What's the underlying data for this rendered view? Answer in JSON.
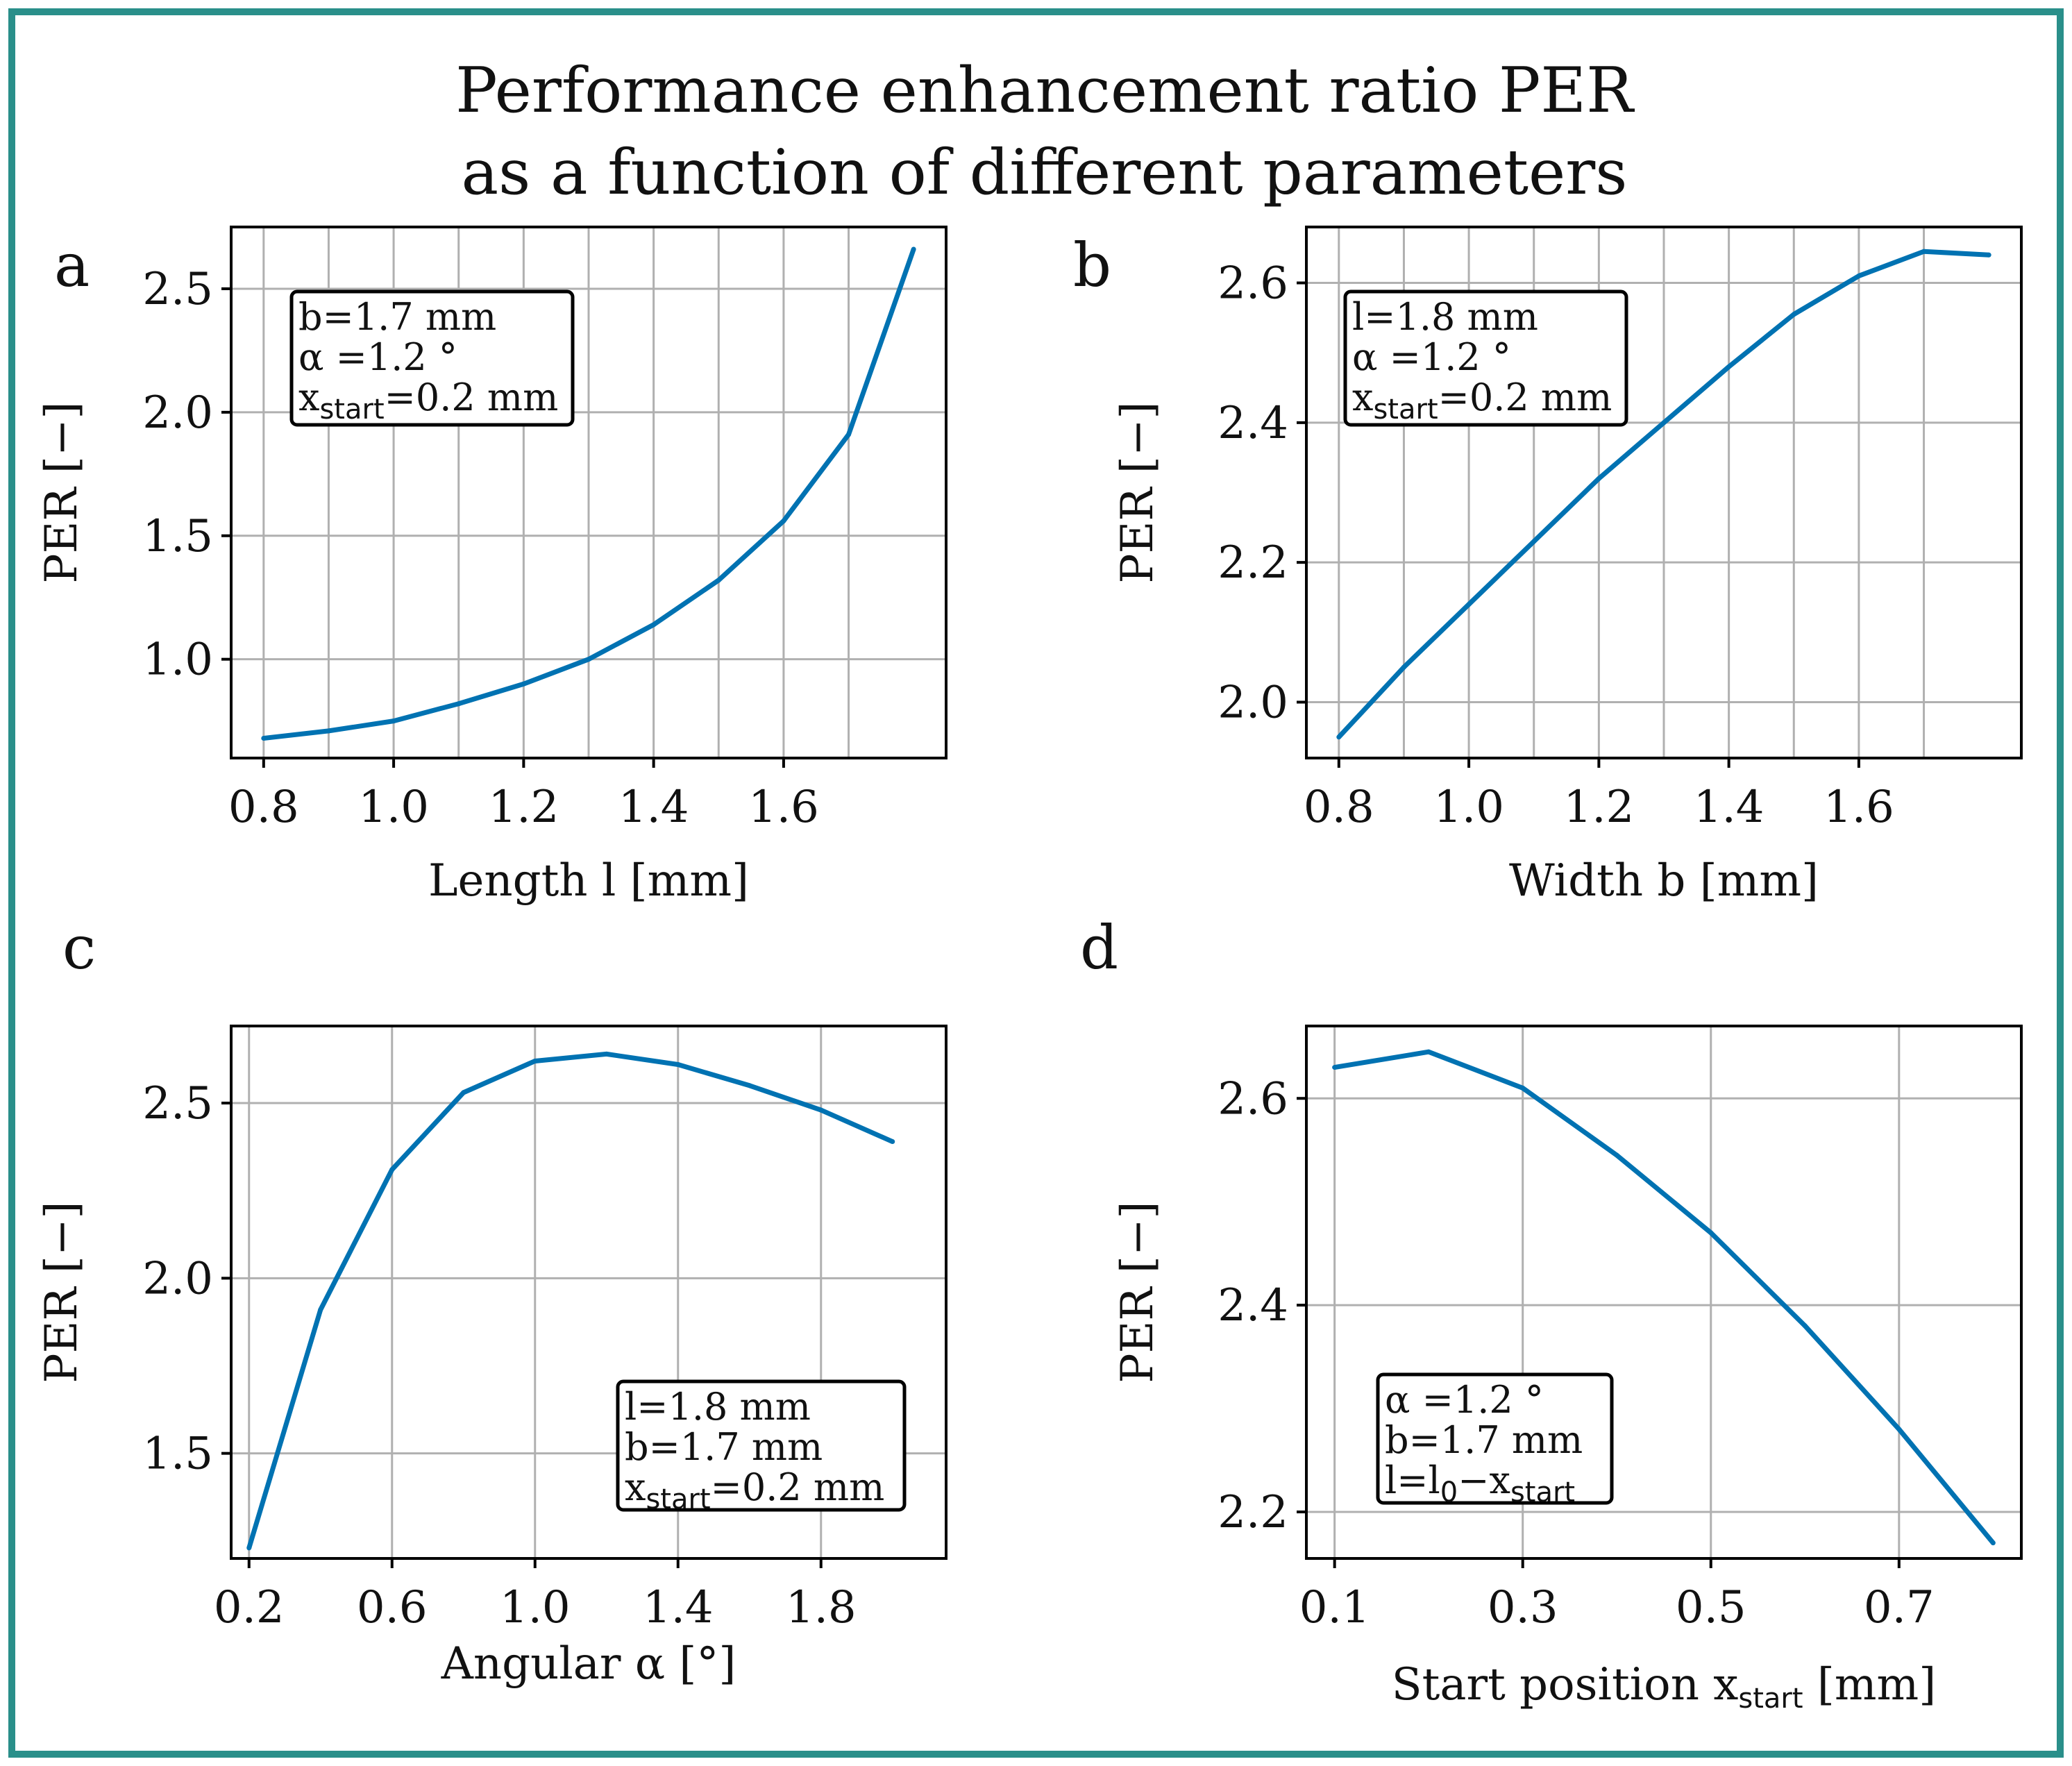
{
  "title": {
    "line1": "Performance enhancement ratio PER",
    "line2": "as a function of different parameters"
  },
  "colors": {
    "line": "#0072b2",
    "grid": "#b0b0b0",
    "frame": "#2a8f8a",
    "axes": "#000000"
  },
  "chart_data": [
    {
      "id": "a",
      "panel_letter": "a",
      "type": "line",
      "xlabel": "Length l [mm]",
      "ylabel": "PER [−]",
      "xlim": [
        0.75,
        1.85
      ],
      "ylim": [
        0.6,
        2.75
      ],
      "xticks": [
        0.8,
        1.0,
        1.2,
        1.4,
        1.6
      ],
      "xtick_labels": [
        "0.8",
        "1.0",
        "1.2",
        "1.4",
        "1.6"
      ],
      "xgrid": [
        0.8,
        0.9,
        1.0,
        1.1,
        1.2,
        1.3,
        1.4,
        1.5,
        1.6,
        1.7
      ],
      "yticks": [
        1.0,
        1.5,
        2.0,
        2.5
      ],
      "ytick_labels": [
        "1.0",
        "1.5",
        "2.0",
        "2.5"
      ],
      "x": [
        0.8,
        0.9,
        1.0,
        1.1,
        1.2,
        1.3,
        1.4,
        1.5,
        1.6,
        1.7,
        1.8
      ],
      "y": [
        0.68,
        0.71,
        0.75,
        0.82,
        0.9,
        1.0,
        1.14,
        1.32,
        1.56,
        1.91,
        2.66
      ],
      "annotation": {
        "lines": [
          {
            "main": "b=1.7 mm"
          },
          {
            "main": " α =1.2 °"
          },
          {
            "main": "x",
            "sub": "start",
            "tail": "=0.2 mm"
          }
        ]
      }
    },
    {
      "id": "b",
      "panel_letter": "b",
      "type": "line",
      "xlabel": "Width b [mm]",
      "ylabel": "PER [−]",
      "xlim": [
        0.75,
        1.85
      ],
      "ylim": [
        1.92,
        2.68
      ],
      "xticks": [
        0.8,
        1.0,
        1.2,
        1.4,
        1.6
      ],
      "xtick_labels": [
        "0.8",
        "1.0",
        "1.2",
        "1.4",
        "1.6"
      ],
      "xgrid": [
        0.8,
        0.9,
        1.0,
        1.1,
        1.2,
        1.3,
        1.4,
        1.5,
        1.6,
        1.7
      ],
      "yticks": [
        2.0,
        2.2,
        2.4,
        2.6
      ],
      "ytick_labels": [
        "2.0",
        "2.2",
        "2.4",
        "2.6"
      ],
      "x": [
        0.8,
        0.9,
        1.0,
        1.1,
        1.2,
        1.3,
        1.4,
        1.5,
        1.6,
        1.7,
        1.8
      ],
      "y": [
        1.95,
        2.05,
        2.14,
        2.23,
        2.32,
        2.4,
        2.48,
        2.555,
        2.61,
        2.645,
        2.64
      ],
      "annotation": {
        "lines": [
          {
            "main": "l=1.8 mm"
          },
          {
            "main": " α =1.2 °"
          },
          {
            "main": "x",
            "sub": "start",
            "tail": "=0.2 mm"
          }
        ]
      }
    },
    {
      "id": "c",
      "panel_letter": "c",
      "type": "line",
      "xlabel": "Angular α [°]",
      "ylabel": "PER [−]",
      "xlim": [
        0.15,
        2.15
      ],
      "ylim": [
        1.2,
        2.72
      ],
      "xticks": [
        0.2,
        0.6,
        1.0,
        1.4,
        1.8
      ],
      "xtick_labels": [
        "0.2",
        "0.6",
        "1.0",
        "1.4",
        "1.8"
      ],
      "xgrid": [
        0.2,
        0.6,
        1.0,
        1.4,
        1.8
      ],
      "yticks": [
        1.5,
        2.0,
        2.5
      ],
      "ytick_labels": [
        "1.5",
        "2.0",
        "2.5"
      ],
      "x": [
        0.2,
        0.4,
        0.6,
        0.8,
        1.0,
        1.2,
        1.4,
        1.6,
        1.8,
        2.0
      ],
      "y": [
        1.23,
        1.91,
        2.31,
        2.53,
        2.62,
        2.64,
        2.61,
        2.55,
        2.48,
        2.39
      ],
      "annotation": {
        "lines": [
          {
            "main": "l=1.8 mm"
          },
          {
            "main": "b=1.7 mm"
          },
          {
            "main": "x",
            "sub": "start",
            "tail": "=0.2 mm"
          }
        ]
      }
    },
    {
      "id": "d",
      "panel_letter": "d",
      "type": "line",
      "xlabel": "Start position x",
      "xlabel_sub": "start",
      "xlabel_tail": " [mm]",
      "ylabel": "PER [−]",
      "xlim": [
        0.07,
        0.83
      ],
      "ylim": [
        2.155,
        2.67
      ],
      "xticks": [
        0.1,
        0.3,
        0.5,
        0.7
      ],
      "xtick_labels": [
        "0.1",
        "0.3",
        "0.5",
        "0.7"
      ],
      "xgrid": [
        0.1,
        0.3,
        0.5,
        0.7
      ],
      "yticks": [
        2.2,
        2.4,
        2.6
      ],
      "ytick_labels": [
        "2.2",
        "2.4",
        "2.6"
      ],
      "x": [
        0.1,
        0.2,
        0.3,
        0.4,
        0.5,
        0.6,
        0.7,
        0.8
      ],
      "y": [
        2.63,
        2.645,
        2.61,
        2.545,
        2.47,
        2.38,
        2.28,
        2.17
      ],
      "annotation": {
        "lines": [
          {
            "main": "α =1.2 °"
          },
          {
            "main": " b=1.7 mm"
          },
          {
            "main": "l=l",
            "sub": "0",
            "tail": "−x",
            "sub2": "start"
          }
        ]
      }
    }
  ]
}
